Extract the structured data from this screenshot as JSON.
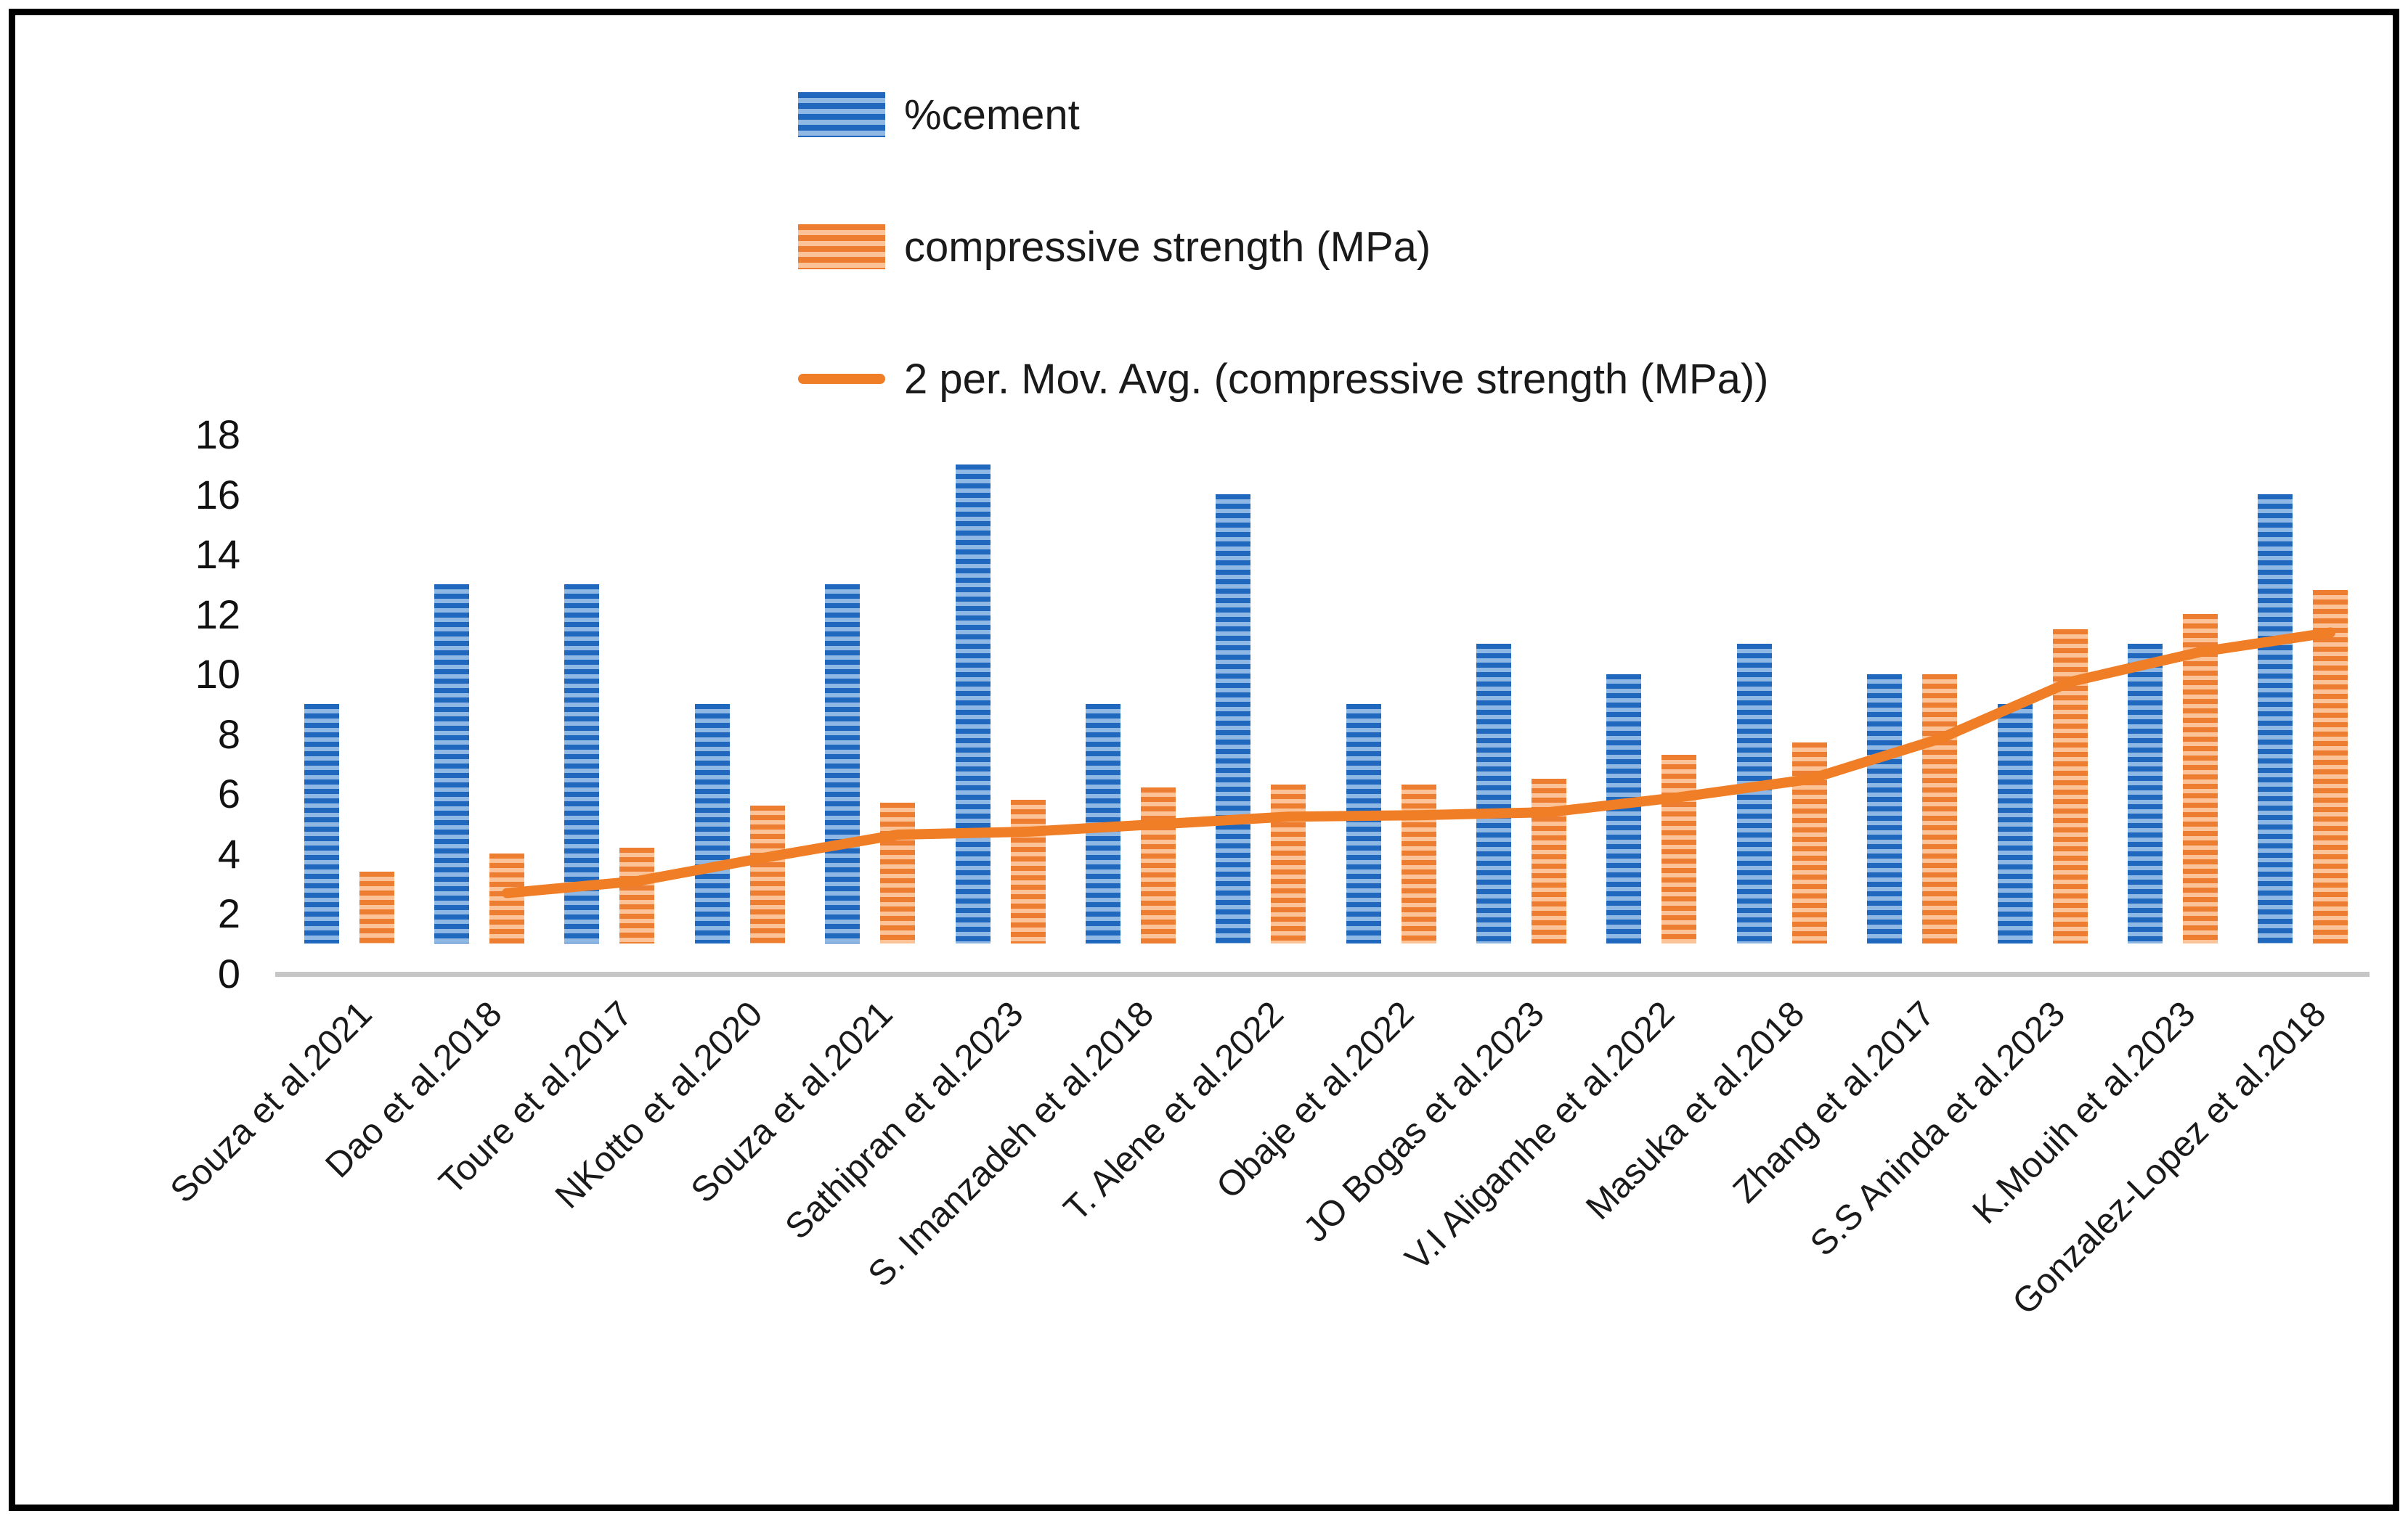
{
  "chart_data": {
    "type": "bar",
    "title": "",
    "xlabel": "",
    "ylabel": "",
    "ylim": [
      0,
      18
    ],
    "y_ticks": [
      0,
      2,
      4,
      6,
      8,
      10,
      12,
      14,
      16,
      18
    ],
    "grid": false,
    "legend_position": "top-center",
    "categories": [
      "Souza et al.2021",
      "Dao et al.2018",
      "Toure et al.2017",
      "NKotto et al.2020",
      "Souza et al.2021",
      "Sathipran et al.2023",
      "S. Imanzadeh et al.2018",
      "T. Alene et al.2022",
      "Obaje et al.2022",
      "JO Bogas et al.2023",
      "V.I Aligamhe et al.2022",
      "Masuka et al.2018",
      "Zhang et al.2017",
      "S.S Aninda et al.2023",
      "K.Mouih et al.2023",
      "Gonzalez-Lopez et al.2018"
    ],
    "series": [
      {
        "name": "%cement",
        "type": "bar",
        "color": "#2068BE",
        "stripe_color": "#8FB8E4",
        "values": [
          8,
          12,
          12,
          8,
          12,
          16,
          8,
          15,
          8,
          10,
          9,
          10,
          9,
          8,
          10,
          15
        ]
      },
      {
        "name": "compressive strength (MPa)",
        "type": "bar",
        "color": "#ED7D31",
        "stripe_color": "#FBC397",
        "values": [
          2.4,
          3,
          3.2,
          4.6,
          4.7,
          4.8,
          5.2,
          5.3,
          5.3,
          5.5,
          6.3,
          6.7,
          9,
          10.5,
          11,
          11.8
        ]
      },
      {
        "name": "2 per. Mov. Avg. (compressive strength (MPa))",
        "type": "line",
        "color": "#F07E26",
        "values": [
          null,
          2.7,
          3.1,
          3.9,
          4.65,
          4.75,
          5.0,
          5.25,
          5.3,
          5.4,
          5.9,
          6.5,
          7.85,
          9.75,
          10.75,
          11.4
        ]
      }
    ]
  },
  "legend": {
    "cement_label": "%cement",
    "strength_label": "compressive strength (MPa)",
    "ma_label": "2 per. Mov. Avg. (compressive strength (MPa))"
  },
  "colors": {
    "cement_bar": "#2068BE",
    "cement_stripe": "#8FB8E4",
    "strength_bar": "#ED7D31",
    "strength_stripe": "#FBC397",
    "ma_line": "#F07E26",
    "axis_line": "#C6C6C6",
    "text": "#1A1A1A",
    "frame_border": "#000000"
  }
}
